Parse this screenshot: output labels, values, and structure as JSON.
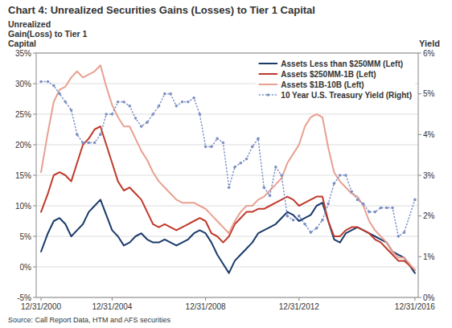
{
  "chart_data": {
    "type": "line",
    "title": "Chart 4: Unrealized Securities Gains (Losses) to Tier 1 Capital",
    "ylabel": [
      "Unrealized",
      "Gain(Loss) to Tier 1",
      "Capital"
    ],
    "y2label": "Yield",
    "source": "Source: Call Report Data, HTM and AFS securities",
    "x": [
      2000.958,
      2001.25,
      2001.5,
      2001.75,
      2002.0,
      2002.25,
      2002.5,
      2002.75,
      2003.0,
      2003.25,
      2003.5,
      2003.75,
      2004.0,
      2004.25,
      2004.5,
      2004.75,
      2005.0,
      2005.25,
      2005.5,
      2005.75,
      2006.0,
      2006.25,
      2006.5,
      2006.75,
      2007.0,
      2007.25,
      2007.5,
      2007.75,
      2008.0,
      2008.25,
      2008.5,
      2008.75,
      2009.0,
      2009.25,
      2009.5,
      2009.75,
      2010.0,
      2010.25,
      2010.5,
      2010.75,
      2011.0,
      2011.25,
      2011.5,
      2011.75,
      2012.0,
      2012.25,
      2012.5,
      2012.75,
      2013.0,
      2013.25,
      2013.5,
      2013.75,
      2014.0,
      2014.25,
      2014.5,
      2014.75,
      2015.0,
      2015.25,
      2015.5,
      2015.75,
      2016.0,
      2016.25,
      2016.5,
      2016.958
    ],
    "xlim": [
      2000.75,
      2017.1
    ],
    "xticks": [
      {
        "value": 2000.958,
        "label": "12/31/2000"
      },
      {
        "value": 2004.0,
        "label": "12/31/2004"
      },
      {
        "value": 2008.0,
        "label": "12/31/2008"
      },
      {
        "value": 2012.0,
        "label": "12/31/2012"
      },
      {
        "value": 2016.958,
        "label": "12/31/2016"
      }
    ],
    "ylim": [
      -0.05,
      0.35
    ],
    "yticks": [
      {
        "value": -0.05,
        "label": "-5%"
      },
      {
        "value": 0.0,
        "label": "0%"
      },
      {
        "value": 0.05,
        "label": "5%"
      },
      {
        "value": 0.1,
        "label": "10%"
      },
      {
        "value": 0.15,
        "label": "15%"
      },
      {
        "value": 0.2,
        "label": "20%"
      },
      {
        "value": 0.25,
        "label": "25%"
      },
      {
        "value": 0.3,
        "label": "30%"
      },
      {
        "value": 0.35,
        "label": "35%"
      }
    ],
    "y2lim": [
      0.0,
      0.06
    ],
    "y2ticks": [
      {
        "value": 0.0,
        "label": "0%"
      },
      {
        "value": 0.01,
        "label": "1%"
      },
      {
        "value": 0.02,
        "label": "2%"
      },
      {
        "value": 0.03,
        "label": "3%"
      },
      {
        "value": 0.04,
        "label": "4%"
      },
      {
        "value": 0.05,
        "label": "5%"
      },
      {
        "value": 0.06,
        "label": "6%"
      }
    ],
    "grid": true,
    "legend": "upper right",
    "series": [
      {
        "name": "Assets Less than $250MM (Left)",
        "color": "#1a3a6b",
        "values": [
          0.025,
          0.055,
          0.075,
          0.08,
          0.07,
          0.05,
          0.06,
          0.07,
          0.09,
          0.1,
          0.11,
          0.085,
          0.06,
          0.05,
          0.035,
          0.04,
          0.05,
          0.055,
          0.045,
          0.04,
          0.04,
          0.045,
          0.04,
          0.035,
          0.04,
          0.045,
          0.055,
          0.06,
          0.055,
          0.04,
          0.02,
          0.005,
          -0.01,
          0.01,
          0.02,
          0.03,
          0.04,
          0.055,
          0.06,
          0.065,
          0.07,
          0.08,
          0.09,
          0.085,
          0.075,
          0.08,
          0.085,
          0.1,
          0.105,
          0.075,
          0.045,
          0.04,
          0.055,
          0.06,
          0.065,
          0.06,
          0.055,
          0.05,
          0.045,
          0.04,
          0.025,
          0.02,
          0.015,
          -0.01
        ]
      },
      {
        "name": "Assets $250MM-1B (Left)",
        "color": "#c0392b",
        "values": [
          0.09,
          0.12,
          0.15,
          0.155,
          0.15,
          0.14,
          0.17,
          0.2,
          0.21,
          0.225,
          0.23,
          0.2,
          0.17,
          0.14,
          0.125,
          0.13,
          0.12,
          0.11,
          0.09,
          0.07,
          0.065,
          0.07,
          0.065,
          0.06,
          0.065,
          0.07,
          0.075,
          0.08,
          0.075,
          0.055,
          0.05,
          0.04,
          0.05,
          0.07,
          0.08,
          0.09,
          0.09,
          0.095,
          0.095,
          0.1,
          0.105,
          0.11,
          0.115,
          0.11,
          0.1,
          0.105,
          0.11,
          0.115,
          0.115,
          0.075,
          0.05,
          0.05,
          0.06,
          0.065,
          0.065,
          0.06,
          0.055,
          0.045,
          0.04,
          0.03,
          0.02,
          0.01,
          0.01,
          -0.005
        ]
      },
      {
        "name": "Assets $1B-10B (Left)",
        "color": "#e8a090",
        "values": [
          0.155,
          0.22,
          0.27,
          0.29,
          0.295,
          0.31,
          0.32,
          0.31,
          0.315,
          0.32,
          0.33,
          0.295,
          0.265,
          0.245,
          0.23,
          0.23,
          0.21,
          0.19,
          0.175,
          0.155,
          0.14,
          0.13,
          0.12,
          0.11,
          0.105,
          0.105,
          0.105,
          0.1,
          0.095,
          0.085,
          0.075,
          0.065,
          0.055,
          0.075,
          0.09,
          0.1,
          0.1,
          0.11,
          0.115,
          0.125,
          0.135,
          0.145,
          0.17,
          0.185,
          0.2,
          0.23,
          0.245,
          0.25,
          0.245,
          0.195,
          0.155,
          0.14,
          0.13,
          0.12,
          0.115,
          0.1,
          0.075,
          0.06,
          0.05,
          0.04,
          0.025,
          0.015,
          0.015,
          -0.005
        ]
      },
      {
        "name": "10 Year U.S. Treasury Yield (Right)",
        "color": "#7b8fc4",
        "axis": "y2",
        "line_style": "dotted",
        "marker": "dot",
        "values": [
          0.053,
          0.053,
          0.052,
          0.05,
          0.048,
          0.046,
          0.04,
          0.038,
          0.038,
          0.038,
          0.04,
          0.045,
          0.045,
          0.048,
          0.048,
          0.047,
          0.044,
          0.042,
          0.043,
          0.045,
          0.047,
          0.05,
          0.05,
          0.047,
          0.048,
          0.048,
          0.049,
          0.045,
          0.037,
          0.037,
          0.039,
          0.038,
          0.027,
          0.032,
          0.033,
          0.034,
          0.037,
          0.039,
          0.027,
          0.025,
          0.032,
          0.03,
          0.02,
          0.019,
          0.02,
          0.018,
          0.016,
          0.017,
          0.019,
          0.023,
          0.028,
          0.03,
          0.03,
          0.026,
          0.024,
          0.023,
          0.021,
          0.021,
          0.022,
          0.022,
          0.022,
          0.015,
          0.016,
          0.024
        ]
      }
    ]
  }
}
